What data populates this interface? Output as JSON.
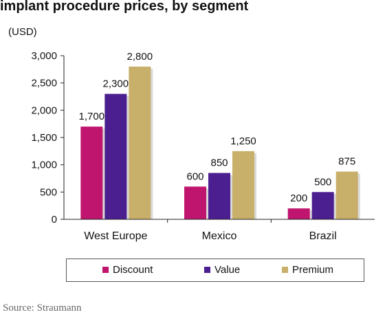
{
  "page": {
    "source": "Source: Straumann"
  },
  "colors": {
    "discount": "#c0156e",
    "value": "#4b1f8f",
    "premium": "#c8b06a",
    "axis": "#222222"
  },
  "chart_data": {
    "type": "bar",
    "title": "implant procedure prices, by segment",
    "ylabel": "(USD)",
    "xlabel": "",
    "ylim": [
      0,
      3000
    ],
    "yticks": [
      0,
      500,
      1000,
      1500,
      2000,
      2500,
      3000
    ],
    "ytick_labels": [
      "0",
      "500",
      "1,000",
      "1,500",
      "2,000",
      "2,500",
      "3,000"
    ],
    "categories": [
      "West Europe",
      "Mexico",
      "Brazil"
    ],
    "series": [
      {
        "name": "Discount",
        "color": "#c0156e",
        "values": [
          1700,
          600,
          200
        ],
        "labels": [
          "1,700",
          "600",
          "200"
        ]
      },
      {
        "name": "Value",
        "color": "#4b1f8f",
        "values": [
          2300,
          850,
          500
        ],
        "labels": [
          "2,300",
          "850",
          "500"
        ]
      },
      {
        "name": "Premium",
        "color": "#c8b06a",
        "values": [
          2800,
          1250,
          875
        ],
        "labels": [
          "2,800",
          "1,250",
          "875"
        ]
      }
    ],
    "grid": false,
    "legend_position": "bottom"
  }
}
